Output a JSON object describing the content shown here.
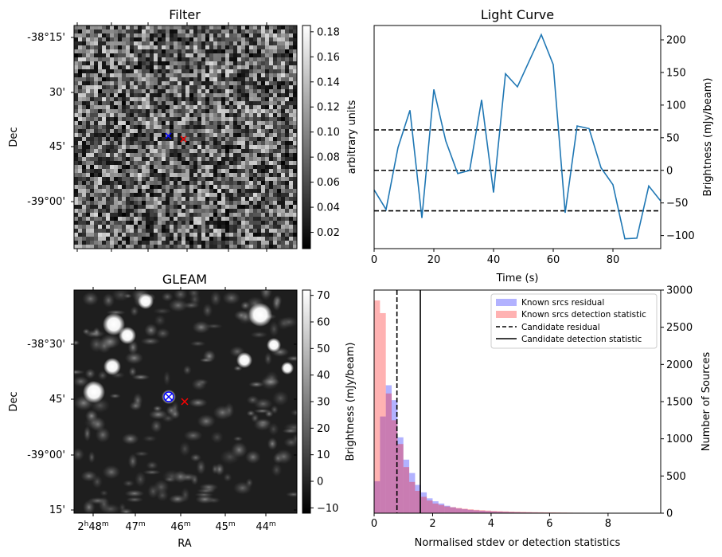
{
  "panels": {
    "filter": {
      "title": "Filter",
      "ylabel": "Dec",
      "ytick_labels": [
        "-38°15'",
        "30'",
        "45'",
        "-39°00'"
      ],
      "colorbar_label": "arbitrary units",
      "colorbar_ticks": [
        "0.02",
        "0.04",
        "0.06",
        "0.08",
        "0.10",
        "0.12",
        "0.14",
        "0.16",
        "0.18"
      ],
      "colorbar_range": [
        0.007,
        0.185
      ],
      "colormap": "gray"
    },
    "gleam": {
      "title": "GLEAM",
      "ylabel": "Dec",
      "xlabel": "RA",
      "ytick_labels": [
        "-38°30'",
        "45'",
        "-39°00'",
        "15'"
      ],
      "xtick_labels": [
        {
          "main": "2",
          "sup1": "h",
          "mid": "48",
          "sup2": "m"
        },
        {
          "main": "47",
          "sup1": "m",
          "mid": "",
          "sup2": ""
        },
        {
          "main": "46",
          "sup1": "m",
          "mid": "",
          "sup2": ""
        },
        {
          "main": "45",
          "sup1": "m",
          "mid": "",
          "sup2": ""
        },
        {
          "main": "44",
          "sup1": "m",
          "mid": "",
          "sup2": ""
        }
      ],
      "colorbar_label": "Brightness (mJy/beam)",
      "colorbar_ticks": [
        "−10",
        "0",
        "10",
        "20",
        "30",
        "40",
        "50",
        "60",
        "70"
      ],
      "colorbar_range": [
        -12,
        72
      ],
      "colormap": "gray",
      "markers": [
        {
          "symbol": "x",
          "color": "#0000ff"
        },
        {
          "symbol": "x",
          "color": "#ff0000"
        },
        {
          "symbol": "o",
          "color": "#0000ff"
        }
      ]
    }
  },
  "chart_data": [
    {
      "type": "line",
      "title": "Light Curve",
      "xlabel": "Time (s)",
      "ylabel": "Brightness (mJy/beam)",
      "xlim": [
        0,
        96
      ],
      "ylim": [
        -120,
        222
      ],
      "xticks": [
        0,
        20,
        40,
        60,
        80
      ],
      "yticks": [
        -100,
        -50,
        0,
        50,
        100,
        150,
        200
      ],
      "color": "#1f77b4",
      "x": [
        0,
        4,
        8,
        12,
        16,
        20,
        24,
        28,
        32,
        36,
        40,
        44,
        48,
        52,
        56,
        60,
        64,
        68,
        72,
        76,
        80,
        84,
        88,
        92,
        96
      ],
      "y": [
        -30,
        -60,
        35,
        92,
        -73,
        124,
        45,
        -5,
        0,
        108,
        -34,
        148,
        128,
        168,
        208,
        162,
        -65,
        68,
        64,
        4,
        -22,
        -105,
        -104,
        -24,
        -47
      ],
      "hlines": [
        62,
        0,
        -62
      ],
      "hline_style": "dashed"
    },
    {
      "type": "bar",
      "xlabel": "Normalised stdev or detection statistics",
      "ylabel": "Number of Sources",
      "xlim": [
        0,
        9.8
      ],
      "ylim": [
        0,
        3000
      ],
      "xticks": [
        0,
        2,
        4,
        6,
        8
      ],
      "yticks": [
        0,
        500,
        1000,
        1500,
        2000,
        2500,
        3000
      ],
      "bin_width": 0.2,
      "bin_start": 0,
      "series": [
        {
          "name": "Known srcs residual",
          "color": "#0000ff",
          "alpha": 0.3,
          "values": [
            430,
            1300,
            1720,
            1520,
            1020,
            720,
            540,
            380,
            280,
            200,
            160,
            130,
            100,
            80,
            64,
            54,
            44,
            38,
            32,
            27,
            23,
            20,
            17,
            14,
            12,
            10,
            9,
            8,
            7,
            6,
            5,
            5,
            4,
            4,
            3,
            3,
            3,
            2,
            2,
            2,
            2,
            2,
            1,
            1,
            1,
            1,
            1,
            1,
            1
          ]
        },
        {
          "name": "Known srcs detection statistic",
          "color": "#ff0000",
          "alpha": 0.3,
          "values": [
            2860,
            2690,
            1610,
            1250,
            930,
            620,
            420,
            300,
            220,
            170,
            130,
            110,
            90,
            80,
            70,
            60,
            52,
            45,
            40,
            35,
            30,
            27,
            24,
            21,
            19,
            17,
            15,
            13,
            12,
            11,
            10,
            9,
            8,
            7,
            6,
            6,
            5,
            5,
            4,
            4,
            3,
            3,
            3,
            2,
            2,
            2,
            2,
            2,
            2
          ]
        }
      ],
      "vlines": [
        {
          "name": "Candidate residual",
          "x": 0.78,
          "style": "dashed"
        },
        {
          "name": "Candidate detection statistic",
          "x": 1.58,
          "style": "solid"
        }
      ],
      "legend_placement": "top-right"
    }
  ]
}
